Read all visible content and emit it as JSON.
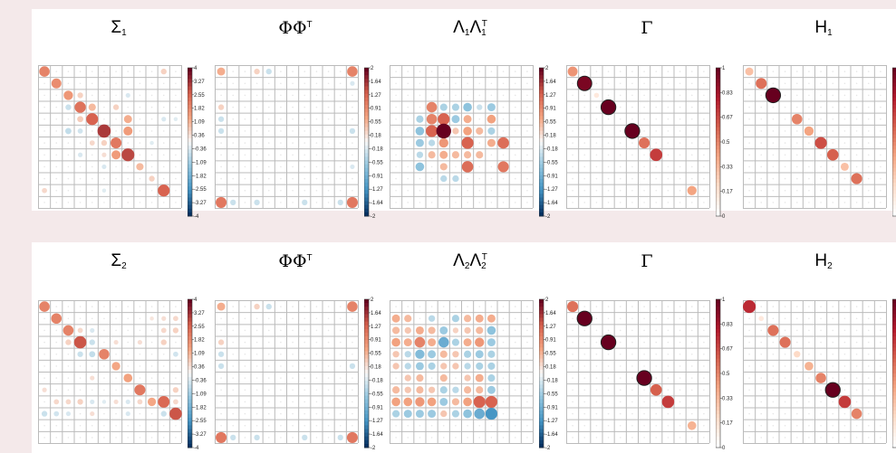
{
  "panels": [
    {
      "titles": [
        {
          "base": "Σ",
          "sub": "1"
        },
        {
          "base": "ΦΦ",
          "sup": "T"
        },
        {
          "base": "Λ",
          "sub": "1",
          "base2": "Λ",
          "sub2": "1",
          "sup2": "T"
        },
        {
          "base": "Γ"
        },
        {
          "base": "H",
          "sub": "1"
        }
      ]
    },
    {
      "titles": [
        {
          "base": "Σ",
          "sub": "2"
        },
        {
          "base": "ΦΦ",
          "sup": "T"
        },
        {
          "base": "Λ",
          "sub": "2",
          "base2": "Λ",
          "sub2": "2",
          "sup2": "T"
        },
        {
          "base": "Γ"
        },
        {
          "base": "H",
          "sub": "2"
        }
      ]
    }
  ],
  "colorbars": {
    "sigma": [
      "4",
      "3.27",
      "2.55",
      "1.82",
      "1.09",
      "0.36",
      "-0.36",
      "-1.09",
      "-1.82",
      "-2.55",
      "-3.27",
      "-4"
    ],
    "loading": [
      "2",
      "1.64",
      "1.27",
      "0.91",
      "0.55",
      "0.18",
      "-0.18",
      "-0.55",
      "-0.91",
      "-1.27",
      "-1.64",
      "-2"
    ],
    "prob": [
      "1",
      "0.83",
      "0.67",
      "0.5",
      "0.33",
      "0.17",
      "0"
    ]
  },
  "colors": {
    "positive_strong": "#67001f",
    "positive_mid": "#d6604d",
    "positive_light": "#f4a582",
    "neutral": "#f7f7f7",
    "negative_light": "#92c5de",
    "negative_mid": "#4393c3",
    "negative_strong": "#053061",
    "grid": "#bbbbbb"
  },
  "chart_data": [
    {
      "type": "heatmap",
      "title": "Σ1",
      "rows": 12,
      "cols": 12,
      "vmin": -4,
      "vmax": 4,
      "cells": [
        [
          0,
          0,
          2.0
        ],
        [
          1,
          1,
          1.8
        ],
        [
          2,
          2,
          1.6
        ],
        [
          2,
          3,
          0.6
        ],
        [
          2,
          7,
          -0.4
        ],
        [
          3,
          3,
          2.3
        ],
        [
          3,
          2,
          -0.6
        ],
        [
          3,
          4,
          1.0
        ],
        [
          3,
          6,
          0.6
        ],
        [
          4,
          4,
          2.6
        ],
        [
          4,
          3,
          0.7
        ],
        [
          4,
          7,
          1.2
        ],
        [
          4,
          10,
          -0.4
        ],
        [
          4,
          11,
          -0.3
        ],
        [
          5,
          5,
          3.2
        ],
        [
          5,
          3,
          -0.5
        ],
        [
          5,
          7,
          1.5
        ],
        [
          6,
          6,
          2.2
        ],
        [
          6,
          4,
          0.5
        ],
        [
          6,
          5,
          0.6
        ],
        [
          7,
          7,
          3.0
        ],
        [
          7,
          5,
          0.4
        ],
        [
          7,
          3,
          -0.4
        ],
        [
          7,
          6,
          1.5
        ],
        [
          8,
          8,
          1.0
        ],
        [
          8,
          5,
          -0.4
        ],
        [
          9,
          9,
          0.6
        ],
        [
          10,
          10,
          2.6
        ],
        [
          10,
          0,
          0.5
        ],
        [
          10,
          5,
          -0.3
        ],
        [
          0,
          10,
          0.6
        ],
        [
          5,
          2,
          -0.7
        ],
        [
          6,
          9,
          -0.3
        ]
      ]
    },
    {
      "type": "heatmap",
      "title": "ΦΦT",
      "rows": 12,
      "cols": 12,
      "vmin": -2,
      "vmax": 2,
      "cells": [
        [
          0,
          0,
          0.6
        ],
        [
          0,
          3,
          0.3
        ],
        [
          0,
          4,
          -0.3
        ],
        [
          0,
          11,
          1.0
        ],
        [
          3,
          0,
          0.3
        ],
        [
          4,
          0,
          -0.3
        ],
        [
          11,
          0,
          1.1
        ],
        [
          11,
          11,
          1.1
        ],
        [
          11,
          1,
          -0.3
        ],
        [
          11,
          3,
          -0.3
        ],
        [
          11,
          7,
          -0.3
        ],
        [
          11,
          10,
          -0.3
        ],
        [
          1,
          11,
          -0.2
        ],
        [
          8,
          11,
          -0.2
        ],
        [
          5,
          0,
          -0.3
        ],
        [
          5,
          11,
          -0.3
        ]
      ]
    },
    {
      "type": "heatmap",
      "title": "Λ1Λ1T",
      "rows": 12,
      "cols": 12,
      "vmin": -2,
      "vmax": 2,
      "cells": [
        [
          3,
          3,
          1.0
        ],
        [
          3,
          4,
          -0.5
        ],
        [
          3,
          5,
          -0.5
        ],
        [
          3,
          6,
          -0.7
        ],
        [
          3,
          7,
          -0.3
        ],
        [
          3,
          8,
          -0.6
        ],
        [
          4,
          2,
          -0.5
        ],
        [
          4,
          3,
          1.0
        ],
        [
          4,
          4,
          1.3
        ],
        [
          4,
          5,
          -0.6
        ],
        [
          4,
          6,
          0.6
        ],
        [
          4,
          8,
          0.7
        ],
        [
          5,
          2,
          -0.7
        ],
        [
          5,
          3,
          1.3
        ],
        [
          5,
          4,
          2.0
        ],
        [
          5,
          5,
          0.4
        ],
        [
          5,
          6,
          0.7
        ],
        [
          5,
          7,
          0.5
        ],
        [
          5,
          8,
          -0.5
        ],
        [
          6,
          2,
          -0.6
        ],
        [
          6,
          3,
          -0.4
        ],
        [
          6,
          4,
          0.8
        ],
        [
          6,
          6,
          1.3
        ],
        [
          6,
          8,
          0.6
        ],
        [
          6,
          9,
          1.2
        ],
        [
          7,
          2,
          -0.4
        ],
        [
          7,
          3,
          0.5
        ],
        [
          7,
          4,
          0.6
        ],
        [
          7,
          5,
          0.5
        ],
        [
          7,
          6,
          0.5
        ],
        [
          7,
          7,
          0.5
        ],
        [
          8,
          2,
          -0.7
        ],
        [
          8,
          4,
          0.5
        ],
        [
          8,
          6,
          1.2
        ],
        [
          8,
          9,
          1.1
        ],
        [
          9,
          4,
          -0.4
        ],
        [
          9,
          5,
          -0.4
        ]
      ]
    },
    {
      "type": "heatmap",
      "title": "Γ",
      "rows": 12,
      "cols": 12,
      "vmin": 0,
      "vmax": 1,
      "cells": [
        [
          0,
          0,
          0.45
        ],
        [
          1,
          1,
          0.95
        ],
        [
          2,
          2,
          0.12
        ],
        [
          3,
          3,
          1.0
        ],
        [
          5,
          5,
          1.0
        ],
        [
          6,
          6,
          0.55
        ],
        [
          7,
          7,
          0.7
        ],
        [
          10,
          10,
          0.4
        ]
      ]
    },
    {
      "type": "heatmap",
      "title": "H1",
      "rows": 12,
      "cols": 12,
      "vmin": 0,
      "vmax": 1,
      "cells": [
        [
          0,
          0,
          0.3
        ],
        [
          1,
          1,
          0.55
        ],
        [
          2,
          2,
          1.0
        ],
        [
          4,
          4,
          0.5
        ],
        [
          5,
          5,
          0.4
        ],
        [
          6,
          6,
          0.65
        ],
        [
          7,
          7,
          0.6
        ],
        [
          8,
          8,
          0.3
        ],
        [
          9,
          9,
          0.55
        ]
      ]
    },
    {
      "type": "heatmap",
      "title": "Σ2",
      "rows": 12,
      "cols": 12,
      "vmin": -4,
      "vmax": 4,
      "cells": [
        [
          0,
          0,
          2.0
        ],
        [
          1,
          1,
          2.0
        ],
        [
          1,
          11,
          0.5
        ],
        [
          1,
          10,
          0.4
        ],
        [
          1,
          9,
          0.3
        ],
        [
          2,
          2,
          2.0
        ],
        [
          2,
          3,
          0.5
        ],
        [
          2,
          4,
          -0.4
        ],
        [
          2,
          10,
          0.5
        ],
        [
          2,
          11,
          0.6
        ],
        [
          3,
          2,
          0.6
        ],
        [
          3,
          3,
          2.8
        ],
        [
          3,
          4,
          -0.6
        ],
        [
          3,
          6,
          0.4
        ],
        [
          3,
          8,
          0.4
        ],
        [
          3,
          10,
          0.6
        ],
        [
          4,
          3,
          -0.6
        ],
        [
          4,
          4,
          -0.7
        ],
        [
          4,
          5,
          2.0
        ],
        [
          4,
          11,
          -0.5
        ],
        [
          5,
          6,
          1.3
        ],
        [
          6,
          7,
          1.4
        ],
        [
          6,
          4,
          0.4
        ],
        [
          7,
          8,
          2.2
        ],
        [
          7,
          11,
          0.6
        ],
        [
          7,
          0,
          0.4
        ],
        [
          8,
          1,
          0.5
        ],
        [
          8,
          2,
          0.5
        ],
        [
          8,
          3,
          0.6
        ],
        [
          8,
          4,
          -0.4
        ],
        [
          8,
          5,
          -0.3
        ],
        [
          8,
          6,
          0.4
        ],
        [
          8,
          7,
          -0.4
        ],
        [
          8,
          8,
          0.5
        ],
        [
          8,
          9,
          1.3
        ],
        [
          8,
          10,
          2.5
        ],
        [
          8,
          11,
          0.5
        ],
        [
          9,
          0,
          -0.6
        ],
        [
          9,
          1,
          -0.5
        ],
        [
          9,
          2,
          -0.4
        ],
        [
          9,
          4,
          0.4
        ],
        [
          9,
          7,
          -0.4
        ],
        [
          9,
          10,
          -0.6
        ],
        [
          9,
          11,
          2.8
        ]
      ]
    },
    {
      "type": "heatmap",
      "title": "ΦΦT",
      "rows": 12,
      "cols": 12,
      "vmin": -2,
      "vmax": 2,
      "cells": [
        [
          0,
          0,
          0.6
        ],
        [
          0,
          3,
          0.3
        ],
        [
          0,
          4,
          -0.3
        ],
        [
          0,
          11,
          1.0
        ],
        [
          3,
          0,
          0.3
        ],
        [
          4,
          0,
          -0.3
        ],
        [
          11,
          0,
          1.1
        ],
        [
          11,
          11,
          1.1
        ],
        [
          11,
          1,
          -0.3
        ],
        [
          11,
          3,
          -0.3
        ],
        [
          11,
          7,
          -0.3
        ],
        [
          11,
          10,
          -0.3
        ],
        [
          5,
          0,
          -0.3
        ],
        [
          5,
          11,
          -0.3
        ]
      ]
    },
    {
      "type": "heatmap",
      "title": "Λ2Λ2T",
      "rows": 12,
      "cols": 12,
      "vmin": -2,
      "vmax": 2,
      "cells": [
        [
          1,
          0,
          0.6
        ],
        [
          1,
          1,
          0.5
        ],
        [
          1,
          3,
          -0.4
        ],
        [
          1,
          5,
          -0.5
        ],
        [
          1,
          6,
          0.5
        ],
        [
          1,
          7,
          0.6
        ],
        [
          1,
          8,
          0.6
        ],
        [
          2,
          0,
          0.5
        ],
        [
          2,
          1,
          0.4
        ],
        [
          2,
          2,
          0.6
        ],
        [
          2,
          3,
          0.5
        ],
        [
          2,
          4,
          -0.6
        ],
        [
          2,
          5,
          0.3
        ],
        [
          2,
          6,
          0.4
        ],
        [
          2,
          7,
          0.5
        ],
        [
          2,
          8,
          -0.7
        ],
        [
          3,
          0,
          0.7
        ],
        [
          3,
          1,
          0.6
        ],
        [
          3,
          2,
          1.0
        ],
        [
          3,
          3,
          0.6
        ],
        [
          3,
          4,
          -1.0
        ],
        [
          3,
          5,
          -0.5
        ],
        [
          3,
          6,
          0.6
        ],
        [
          3,
          7,
          0.8
        ],
        [
          3,
          8,
          -0.6
        ],
        [
          4,
          0,
          0.4
        ],
        [
          4,
          1,
          -0.4
        ],
        [
          4,
          2,
          -0.8
        ],
        [
          4,
          3,
          -0.6
        ],
        [
          4,
          4,
          0.5
        ],
        [
          4,
          5,
          0.4
        ],
        [
          4,
          6,
          -0.5
        ],
        [
          4,
          7,
          -0.6
        ],
        [
          4,
          8,
          -0.5
        ],
        [
          5,
          0,
          0.4
        ],
        [
          5,
          1,
          -0.4
        ],
        [
          5,
          2,
          -0.6
        ],
        [
          5,
          3,
          -0.5
        ],
        [
          5,
          4,
          0.4
        ],
        [
          5,
          5,
          0.4
        ],
        [
          5,
          6,
          -0.4
        ],
        [
          5,
          7,
          -0.5
        ],
        [
          5,
          8,
          -0.5
        ],
        [
          6,
          1,
          0.4
        ],
        [
          6,
          2,
          0.5
        ],
        [
          6,
          4,
          0.5
        ],
        [
          6,
          6,
          0.4
        ],
        [
          6,
          7,
          0.6
        ],
        [
          6,
          8,
          -0.5
        ],
        [
          7,
          0,
          0.5
        ],
        [
          7,
          1,
          0.4
        ],
        [
          7,
          2,
          0.5
        ],
        [
          7,
          3,
          0.4
        ],
        [
          7,
          4,
          -0.5
        ],
        [
          7,
          5,
          -0.4
        ],
        [
          7,
          6,
          0.5
        ],
        [
          7,
          7,
          0.5
        ],
        [
          7,
          8,
          -0.6
        ],
        [
          8,
          0,
          0.7
        ],
        [
          8,
          1,
          0.7
        ],
        [
          8,
          2,
          0.8
        ],
        [
          8,
          3,
          0.7
        ],
        [
          8,
          4,
          -0.6
        ],
        [
          8,
          5,
          0.5
        ],
        [
          8,
          6,
          0.7
        ],
        [
          8,
          7,
          1.3
        ],
        [
          8,
          8,
          1.3
        ],
        [
          9,
          0,
          -0.5
        ],
        [
          9,
          1,
          -0.6
        ],
        [
          9,
          2,
          -0.6
        ],
        [
          9,
          3,
          -0.6
        ],
        [
          9,
          4,
          0.4
        ],
        [
          9,
          5,
          -0.5
        ],
        [
          9,
          6,
          -0.7
        ],
        [
          9,
          7,
          -1.0
        ],
        [
          9,
          8,
          -1.3
        ]
      ]
    },
    {
      "type": "heatmap",
      "title": "Γ",
      "rows": 12,
      "cols": 12,
      "vmin": 0,
      "vmax": 1,
      "cells": [
        [
          0,
          0,
          0.55
        ],
        [
          1,
          1,
          1.0
        ],
        [
          3,
          3,
          1.0
        ],
        [
          6,
          6,
          1.0
        ],
        [
          7,
          7,
          0.6
        ],
        [
          8,
          8,
          0.7
        ],
        [
          10,
          10,
          0.35
        ]
      ]
    },
    {
      "type": "heatmap",
      "title": "H2",
      "rows": 12,
      "cols": 12,
      "vmin": 0,
      "vmax": 1,
      "cells": [
        [
          0,
          0,
          0.75
        ],
        [
          1,
          1,
          0.12
        ],
        [
          2,
          2,
          0.55
        ],
        [
          3,
          3,
          0.55
        ],
        [
          4,
          4,
          0.2
        ],
        [
          5,
          5,
          0.35
        ],
        [
          6,
          6,
          0.5
        ],
        [
          7,
          7,
          1.0
        ],
        [
          8,
          8,
          0.7
        ],
        [
          9,
          9,
          0.5
        ]
      ]
    }
  ]
}
